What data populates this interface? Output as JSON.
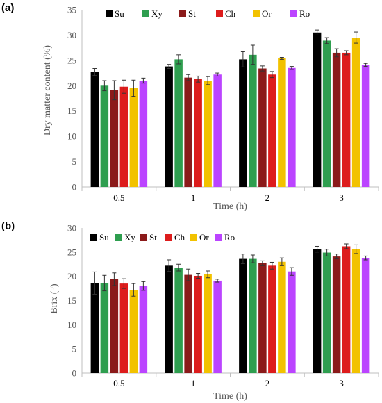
{
  "chart_data": [
    {
      "type": "bar",
      "panel_label": "(a)",
      "categories": [
        "0.5",
        "1",
        "2",
        "3"
      ],
      "xlabel": "Time (h)",
      "ylabel": "Dry matter content (%)",
      "ylim": [
        0,
        35
      ],
      "yticks": [
        "0",
        "5",
        "10",
        "15",
        "20",
        "25",
        "30",
        "35"
      ],
      "grid": false,
      "legend_position": "top",
      "series": [
        {
          "name": "Su",
          "color": "#000000",
          "values": [
            22.7,
            23.8,
            25.2,
            30.5
          ],
          "errors": [
            0.7,
            0.4,
            1.5,
            0.5
          ]
        },
        {
          "name": "Xy",
          "color": "#2e9e4f",
          "values": [
            20.0,
            25.2,
            26.1,
            28.9
          ],
          "errors": [
            1.0,
            0.9,
            1.9,
            0.6
          ]
        },
        {
          "name": "St",
          "color": "#8b1a1a",
          "values": [
            19.1,
            21.6,
            23.4,
            26.5
          ],
          "errors": [
            1.9,
            0.6,
            0.5,
            0.8
          ]
        },
        {
          "name": "Ch",
          "color": "#dd1c1c",
          "values": [
            19.8,
            21.3,
            22.2,
            26.5
          ],
          "errors": [
            1.3,
            0.6,
            0.6,
            0.4
          ]
        },
        {
          "name": "Or",
          "color": "#f2c200",
          "values": [
            19.5,
            21.0,
            25.4,
            29.5
          ],
          "errors": [
            1.6,
            0.8,
            0.2,
            1.1
          ]
        },
        {
          "name": "Ro",
          "color": "#bb44ff",
          "values": [
            21.0,
            22.2,
            23.5,
            24.1
          ],
          "errors": [
            0.5,
            0.3,
            0.3,
            0.3
          ]
        }
      ]
    },
    {
      "type": "bar",
      "panel_label": "(b)",
      "categories": [
        "0.5",
        "1",
        "2",
        "3"
      ],
      "xlabel": "Time (h)",
      "ylabel": "Brix (°)",
      "ylim": [
        0,
        30
      ],
      "yticks": [
        "0",
        "5",
        "10",
        "15",
        "20",
        "25",
        "30"
      ],
      "grid": false,
      "legend_position": "top",
      "series": [
        {
          "name": "Su",
          "color": "#000000",
          "values": [
            18.6,
            22.2,
            23.6,
            25.6
          ],
          "errors": [
            2.3,
            1.2,
            1.0,
            0.6
          ]
        },
        {
          "name": "Xy",
          "color": "#2e9e4f",
          "values": [
            18.6,
            21.8,
            23.6,
            24.9
          ],
          "errors": [
            1.6,
            0.7,
            0.8,
            0.7
          ]
        },
        {
          "name": "St",
          "color": "#8b1a1a",
          "values": [
            19.4,
            20.3,
            22.7,
            24.1
          ],
          "errors": [
            1.3,
            1.2,
            0.5,
            0.5
          ]
        },
        {
          "name": "Ch",
          "color": "#dd1c1c",
          "values": [
            18.5,
            20.1,
            22.2,
            26.2
          ],
          "errors": [
            1.0,
            0.5,
            0.7,
            0.5
          ]
        },
        {
          "name": "Or",
          "color": "#f2c200",
          "values": [
            17.2,
            20.4,
            23.0,
            25.6
          ],
          "errors": [
            1.3,
            0.7,
            0.8,
            0.9
          ]
        },
        {
          "name": "Ro",
          "color": "#bb44ff",
          "values": [
            18.0,
            19.1,
            21.0,
            23.8
          ],
          "errors": [
            0.9,
            0.3,
            0.8,
            0.4
          ]
        }
      ]
    }
  ]
}
